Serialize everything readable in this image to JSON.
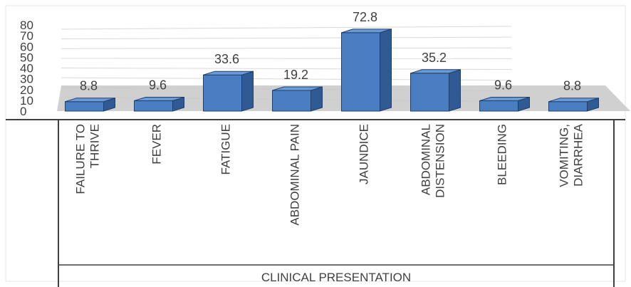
{
  "chart_data": {
    "type": "bar",
    "style": "3d-column",
    "categories": [
      "FAILURE TO THRIVE",
      "FEVER",
      "FATIGUE",
      "ABDOMINAL PAIN",
      "JAUNDICE",
      "ABDOMINAL DISTENSION",
      "BLEEDING",
      "VOMITING, DIARRHEA"
    ],
    "category_lines": [
      [
        "FAILURE TO",
        "THRIVE"
      ],
      [
        "FEVER"
      ],
      [
        "FATIGUE"
      ],
      [
        "ABDOMINAL PAIN"
      ],
      [
        "JAUNDICE"
      ],
      [
        "ABDOMINAL",
        "DISTENSION"
      ],
      [
        "BLEEDING"
      ],
      [
        "VOMITING,",
        "DIARRHEA"
      ]
    ],
    "values": [
      8.8,
      9.6,
      33.6,
      19.2,
      72.8,
      35.2,
      9.6,
      8.8
    ],
    "data_labels": [
      "8.8",
      "9.6",
      "33.6",
      "19.2",
      "72.8",
      "35.2",
      "9.6",
      "8.8"
    ],
    "y_ticks": [
      "0",
      "10",
      "20",
      "30",
      "40",
      "50",
      "60",
      "70",
      "80"
    ],
    "ylim": [
      0,
      80
    ],
    "xlabel": "CLINICAL PRESENTATION",
    "title": "",
    "ylabel": "",
    "grid": true,
    "legend": "none",
    "colors": {
      "bar_front": "#4a7ec2",
      "bar_side": "#2f5a94",
      "bar_top": "#6d9ad6",
      "bar_edge": "#1f3f6b",
      "floor": "#c8c8c8",
      "grid": "#d9d9d9",
      "text": "#404040",
      "axis_box": "#404040"
    }
  }
}
